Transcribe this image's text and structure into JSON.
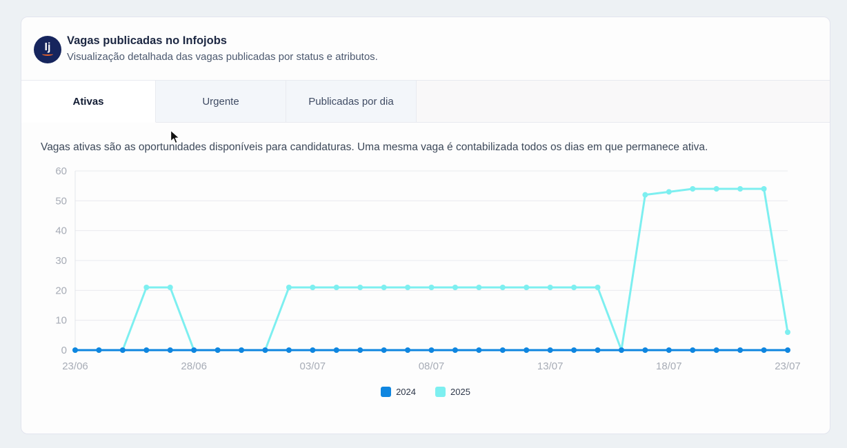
{
  "header": {
    "logo_text": "Ij",
    "title": "Vagas publicadas no Infojobs",
    "subtitle": "Visualização detalhada das vagas publicadas por status e atributos."
  },
  "tabs": [
    {
      "label": "Ativas",
      "active": true
    },
    {
      "label": "Urgente",
      "active": false
    },
    {
      "label": "Publicadas por dia",
      "active": false
    }
  ],
  "description": "Vagas ativas são as oportunidades disponíveis para candidaturas. Uma mesma vaga é contabilizada todos os dias em que permanece ativa.",
  "colors": {
    "grid": "#e9eaee",
    "axis_line": "#e4e6ea",
    "axis_label": "#a7acb6",
    "series_2024": "#0f86e0",
    "series_2025": "#7deff0"
  },
  "chart_data": {
    "type": "line",
    "title": "",
    "xlabel": "",
    "ylabel": "",
    "n_points": 31,
    "ylim": [
      0,
      60
    ],
    "y_ticks": [
      0,
      10,
      20,
      30,
      40,
      50,
      60
    ],
    "x_tick_labels": [
      "23/06",
      "28/06",
      "03/07",
      "08/07",
      "13/07",
      "18/07",
      "23/07"
    ],
    "x_tick_indices": [
      0,
      5,
      10,
      15,
      20,
      25,
      30
    ],
    "grid": true,
    "legend_position": "bottom",
    "series": [
      {
        "name": "2024",
        "color": "#0f86e0",
        "values": [
          0,
          0,
          0,
          0,
          0,
          0,
          0,
          0,
          0,
          0,
          0,
          0,
          0,
          0,
          0,
          0,
          0,
          0,
          0,
          0,
          0,
          0,
          0,
          0,
          0,
          0,
          0,
          0,
          0,
          0,
          0
        ]
      },
      {
        "name": "2025",
        "color": "#7deff0",
        "values": [
          0,
          0,
          0,
          21,
          21,
          0,
          0,
          0,
          0,
          21,
          21,
          21,
          21,
          21,
          21,
          21,
          21,
          21,
          21,
          21,
          21,
          21,
          21,
          0,
          52,
          53,
          54,
          54,
          54,
          54,
          6
        ]
      }
    ]
  }
}
